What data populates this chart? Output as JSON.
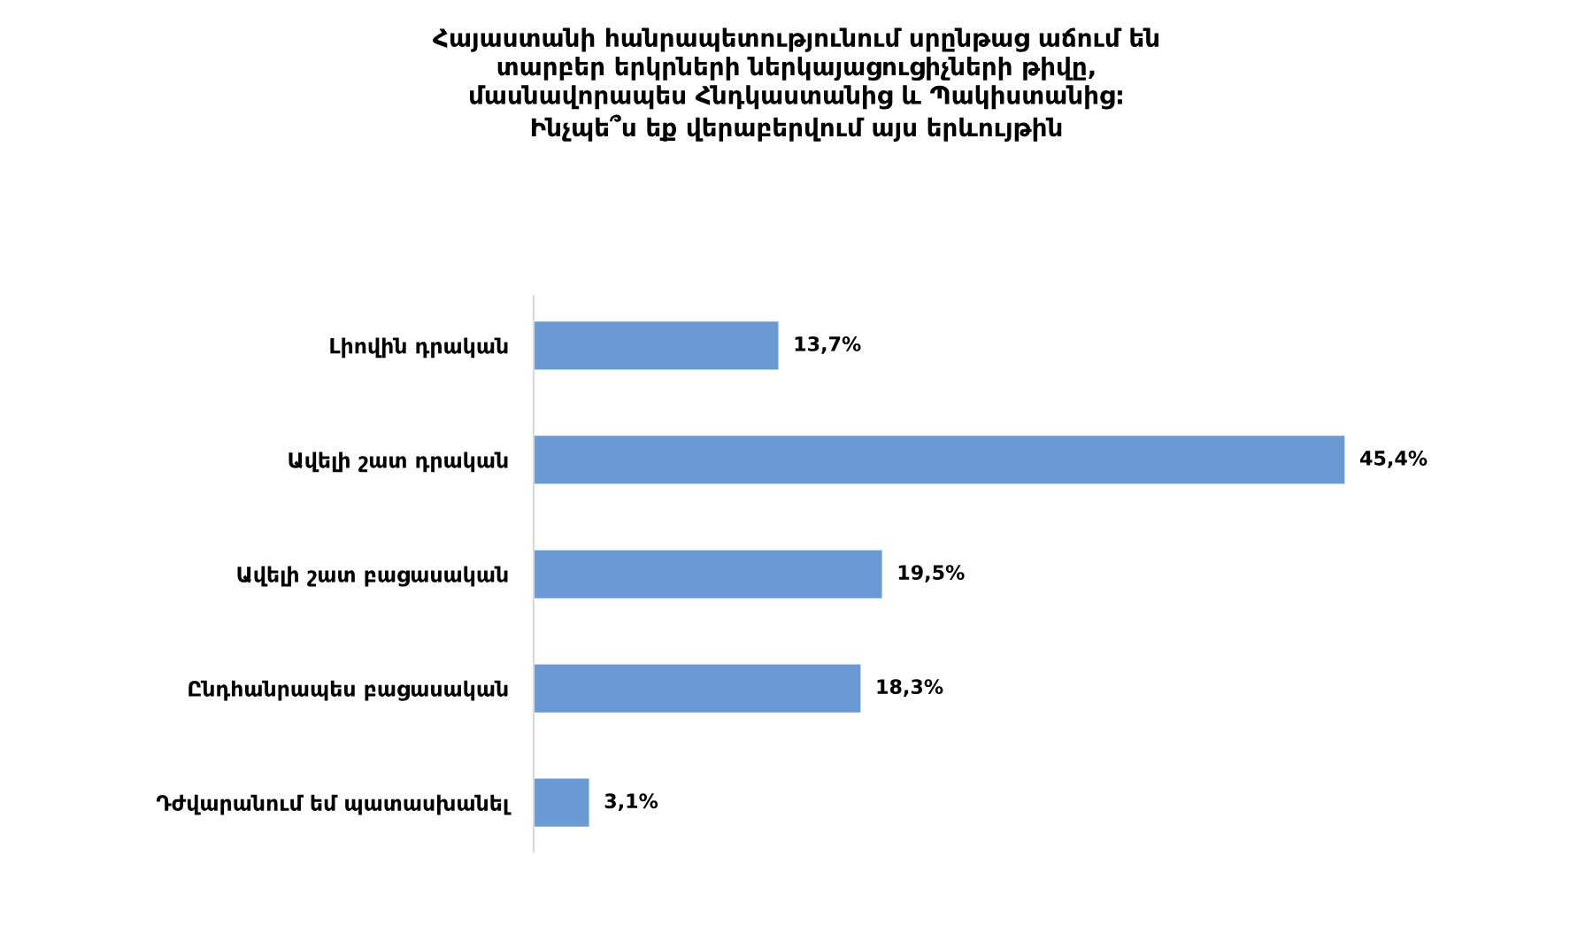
{
  "chart_data": {
    "type": "bar",
    "orientation": "horizontal",
    "title": "Հայաստանի հանրապետությունում սրընթաց աճում են\nտարբեր երկրների ներկայացուցիչների թիվը,\nմասնավորապես Հնդկաստանից և Պակիստանից:\nԻնչպե՞ս եք վերաբերվում այս երևույթին",
    "categories": [
      "Լիովին դրական",
      "Ավելի շատ դրական",
      "Ավելի շատ բացասական",
      "Ընդհանրապես բացասական",
      "Դժվարանում եմ պատասխանել"
    ],
    "values": [
      13.7,
      45.4,
      19.5,
      18.3,
      3.1
    ],
    "value_labels": [
      "13,7%",
      "45,4%",
      "19,5%",
      "18,3%",
      "3,1%"
    ],
    "color": "#6a9ad3",
    "grid": false,
    "legend": false
  }
}
